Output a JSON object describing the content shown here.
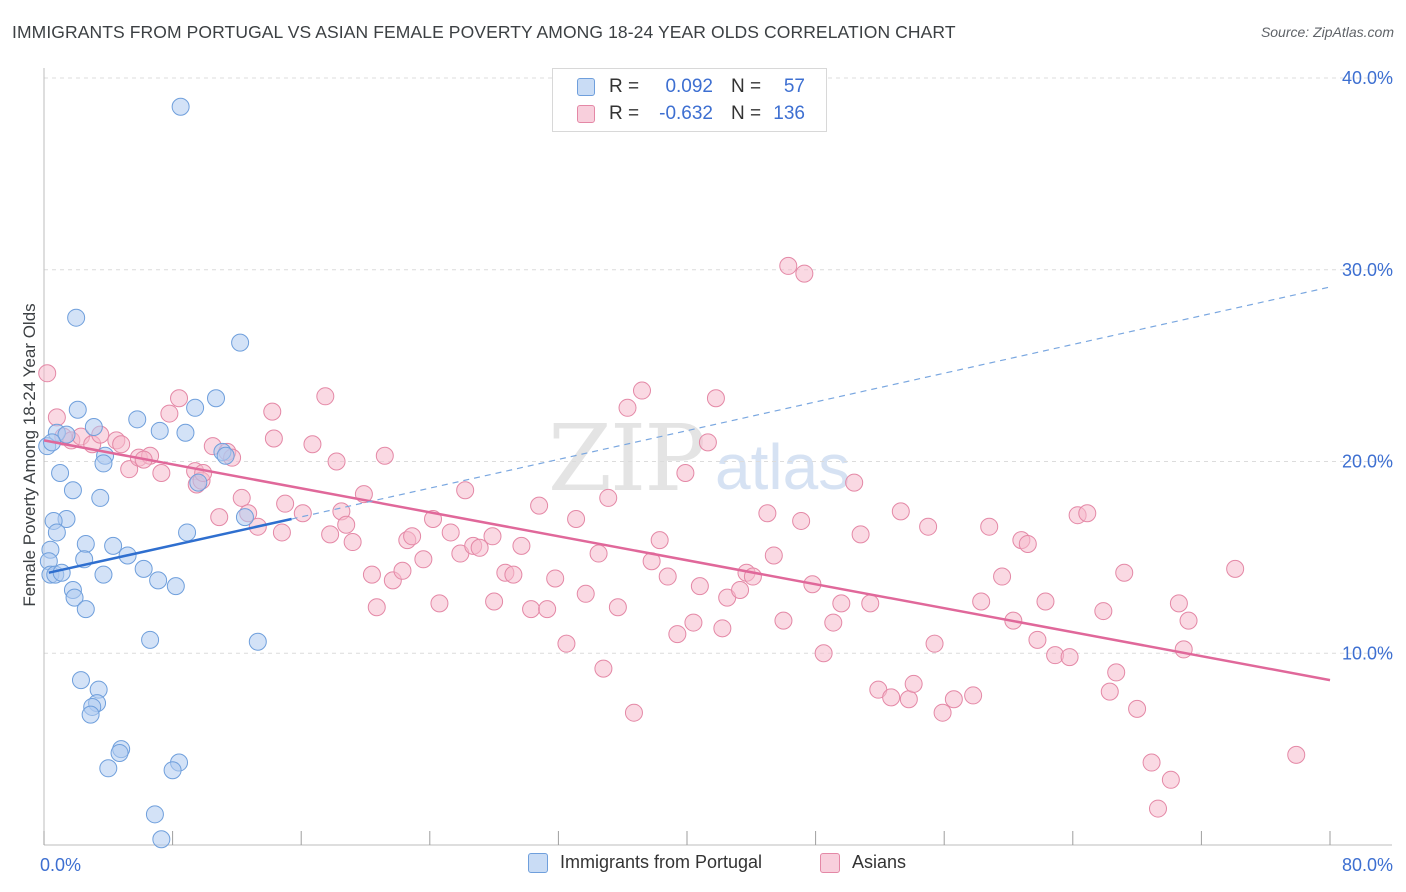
{
  "header": {
    "title": "IMMIGRANTS FROM PORTUGAL VS ASIAN FEMALE POVERTY AMONG 18-24 YEAR OLDS CORRELATION CHART",
    "source": "Source: ZipAtlas.com"
  },
  "watermark": {
    "zip": "ZIP",
    "atlas": "atlas"
  },
  "legend": {
    "rows": [
      {
        "series": "Immigrants from Portugal",
        "r_label": "R =",
        "r_value": "0.092",
        "n_label": "N =",
        "n_value": "57"
      },
      {
        "series": "Asians",
        "r_label": "R =",
        "r_value": "-0.632",
        "n_label": "N =",
        "n_value": "136"
      }
    ]
  },
  "colors": {
    "blue_fill": "#aecbf0",
    "blue_stroke": "#6f9fdc",
    "blue_line": "#2f6fcf",
    "pink_fill": "#f5b9cc",
    "pink_stroke": "#e488a6",
    "pink_line": "#e0689a",
    "axis_label": "#3d6fd1",
    "grid": "#dcdcdc"
  },
  "chart_data": {
    "type": "scatter",
    "title": "IMMIGRANTS FROM PORTUGAL VS ASIAN FEMALE POVERTY AMONG 18-24 YEAR OLDS CORRELATION CHART",
    "xlabel": "",
    "ylabel": "Female Poverty Among 18-24 Year Olds",
    "xlim": [
      0,
      80
    ],
    "ylim": [
      0,
      40
    ],
    "x_tick_labels": [
      "0.0%",
      "80.0%"
    ],
    "y_ticks": [
      10,
      20,
      30,
      40
    ],
    "y_tick_labels": [
      "10.0%",
      "20.0%",
      "30.0%",
      "40.0%"
    ],
    "grid": true,
    "legend_placement": "top-center",
    "series": [
      {
        "name": "Immigrants from Portugal",
        "r": 0.092,
        "n": 57,
        "trend_solid": [
          [
            0.3,
            14.2
          ],
          [
            15.4,
            17.0
          ]
        ],
        "trend_dashed": [
          [
            15.4,
            17.0
          ],
          [
            80.0,
            29.1
          ]
        ],
        "points": [
          [
            8.5,
            38.5
          ],
          [
            2.0,
            27.5
          ],
          [
            12.2,
            26.2
          ],
          [
            0.8,
            21.5
          ],
          [
            1.4,
            21.4
          ],
          [
            2.1,
            22.7
          ],
          [
            3.1,
            21.8
          ],
          [
            5.8,
            22.2
          ],
          [
            7.2,
            21.6
          ],
          [
            8.8,
            21.5
          ],
          [
            10.7,
            23.3
          ],
          [
            9.4,
            22.8
          ],
          [
            11.1,
            20.5
          ],
          [
            11.3,
            20.3
          ],
          [
            3.8,
            20.3
          ],
          [
            3.7,
            19.9
          ],
          [
            1.0,
            19.4
          ],
          [
            1.8,
            18.5
          ],
          [
            3.5,
            18.1
          ],
          [
            9.6,
            18.9
          ],
          [
            1.4,
            17.0
          ],
          [
            0.6,
            16.9
          ],
          [
            12.5,
            17.1
          ],
          [
            0.8,
            16.3
          ],
          [
            8.9,
            16.3
          ],
          [
            0.4,
            15.4
          ],
          [
            2.6,
            15.7
          ],
          [
            4.3,
            15.6
          ],
          [
            0.3,
            14.8
          ],
          [
            2.5,
            14.9
          ],
          [
            5.2,
            15.1
          ],
          [
            6.2,
            14.4
          ],
          [
            0.4,
            14.1
          ],
          [
            0.7,
            14.1
          ],
          [
            1.1,
            14.2
          ],
          [
            3.7,
            14.1
          ],
          [
            7.1,
            13.8
          ],
          [
            8.2,
            13.5
          ],
          [
            1.8,
            13.3
          ],
          [
            1.9,
            12.9
          ],
          [
            2.6,
            12.3
          ],
          [
            6.6,
            10.7
          ],
          [
            13.3,
            10.6
          ],
          [
            2.3,
            8.6
          ],
          [
            3.4,
            8.1
          ],
          [
            3.3,
            7.4
          ],
          [
            3.0,
            7.2
          ],
          [
            2.9,
            6.8
          ],
          [
            4.8,
            5.0
          ],
          [
            4.7,
            4.8
          ],
          [
            4.0,
            4.0
          ],
          [
            8.4,
            4.3
          ],
          [
            8.0,
            3.9
          ],
          [
            6.9,
            1.6
          ],
          [
            7.3,
            0.3
          ],
          [
            0.2,
            20.8
          ],
          [
            0.5,
            21.0
          ]
        ]
      },
      {
        "name": "Asians",
        "r": -0.632,
        "n": 136,
        "trend": [
          [
            0.0,
            21.1
          ],
          [
            80.0,
            8.6
          ]
        ],
        "points": [
          [
            0.2,
            24.6
          ],
          [
            0.8,
            22.3
          ],
          [
            1.2,
            21.3
          ],
          [
            1.7,
            21.1
          ],
          [
            2.3,
            21.3
          ],
          [
            3.0,
            20.9
          ],
          [
            3.5,
            21.4
          ],
          [
            4.5,
            21.1
          ],
          [
            4.8,
            20.9
          ],
          [
            5.3,
            19.6
          ],
          [
            5.9,
            20.2
          ],
          [
            6.6,
            20.3
          ],
          [
            7.3,
            19.4
          ],
          [
            7.8,
            22.5
          ],
          [
            8.4,
            23.3
          ],
          [
            9.4,
            19.5
          ],
          [
            9.5,
            18.8
          ],
          [
            9.8,
            19.0
          ],
          [
            9.9,
            19.4
          ],
          [
            10.5,
            20.8
          ],
          [
            11.4,
            20.5
          ],
          [
            11.7,
            20.2
          ],
          [
            10.9,
            17.1
          ],
          [
            12.3,
            18.1
          ],
          [
            12.7,
            17.3
          ],
          [
            13.3,
            16.6
          ],
          [
            14.8,
            16.3
          ],
          [
            14.2,
            22.6
          ],
          [
            15.0,
            17.8
          ],
          [
            16.1,
            17.3
          ],
          [
            16.7,
            20.9
          ],
          [
            17.5,
            23.4
          ],
          [
            17.8,
            16.2
          ],
          [
            18.5,
            17.4
          ],
          [
            18.8,
            16.7
          ],
          [
            18.2,
            20.0
          ],
          [
            19.2,
            15.8
          ],
          [
            19.9,
            18.3
          ],
          [
            20.4,
            14.1
          ],
          [
            20.7,
            12.4
          ],
          [
            21.2,
            20.3
          ],
          [
            21.7,
            13.8
          ],
          [
            22.3,
            14.3
          ],
          [
            22.6,
            15.9
          ],
          [
            22.9,
            16.1
          ],
          [
            23.6,
            14.9
          ],
          [
            24.2,
            17.0
          ],
          [
            24.6,
            12.6
          ],
          [
            25.3,
            16.3
          ],
          [
            25.9,
            15.2
          ],
          [
            26.2,
            18.5
          ],
          [
            26.7,
            15.6
          ],
          [
            27.1,
            15.5
          ],
          [
            27.9,
            16.1
          ],
          [
            28.0,
            12.7
          ],
          [
            28.7,
            14.2
          ],
          [
            29.2,
            14.1
          ],
          [
            29.7,
            15.6
          ],
          [
            30.3,
            12.3
          ],
          [
            30.8,
            17.7
          ],
          [
            31.3,
            12.3
          ],
          [
            31.8,
            13.9
          ],
          [
            32.5,
            10.5
          ],
          [
            33.1,
            17.0
          ],
          [
            33.7,
            13.1
          ],
          [
            34.5,
            15.2
          ],
          [
            34.8,
            9.2
          ],
          [
            35.1,
            18.1
          ],
          [
            35.7,
            12.4
          ],
          [
            36.3,
            22.8
          ],
          [
            36.7,
            6.9
          ],
          [
            37.2,
            23.7
          ],
          [
            37.8,
            14.8
          ],
          [
            38.3,
            15.9
          ],
          [
            38.8,
            14.0
          ],
          [
            39.4,
            11.0
          ],
          [
            39.9,
            19.4
          ],
          [
            40.4,
            11.6
          ],
          [
            40.8,
            13.5
          ],
          [
            41.3,
            21.0
          ],
          [
            41.8,
            23.3
          ],
          [
            42.2,
            11.3
          ],
          [
            42.5,
            12.9
          ],
          [
            43.3,
            13.3
          ],
          [
            43.7,
            14.2
          ],
          [
            44.1,
            14.0
          ],
          [
            45.0,
            17.3
          ],
          [
            45.4,
            15.1
          ],
          [
            46.0,
            11.7
          ],
          [
            47.1,
            16.9
          ],
          [
            47.8,
            13.6
          ],
          [
            48.5,
            10.0
          ],
          [
            49.1,
            11.6
          ],
          [
            49.6,
            12.6
          ],
          [
            50.4,
            18.9
          ],
          [
            50.8,
            16.2
          ],
          [
            51.4,
            12.6
          ],
          [
            51.9,
            8.1
          ],
          [
            52.7,
            7.7
          ],
          [
            53.3,
            17.4
          ],
          [
            53.8,
            7.6
          ],
          [
            54.1,
            8.4
          ],
          [
            55.0,
            16.6
          ],
          [
            55.4,
            10.5
          ],
          [
            55.9,
            6.9
          ],
          [
            56.6,
            7.6
          ],
          [
            57.8,
            7.8
          ],
          [
            58.3,
            12.7
          ],
          [
            58.8,
            16.6
          ],
          [
            59.6,
            14.0
          ],
          [
            60.3,
            11.7
          ],
          [
            60.8,
            15.9
          ],
          [
            61.2,
            15.7
          ],
          [
            61.8,
            10.7
          ],
          [
            62.3,
            12.7
          ],
          [
            62.9,
            9.9
          ],
          [
            63.8,
            9.8
          ],
          [
            64.3,
            17.2
          ],
          [
            64.9,
            17.3
          ],
          [
            65.9,
            12.2
          ],
          [
            66.3,
            8.0
          ],
          [
            66.7,
            9.0
          ],
          [
            67.2,
            14.2
          ],
          [
            68.0,
            7.1
          ],
          [
            68.9,
            4.3
          ],
          [
            69.3,
            1.9
          ],
          [
            70.1,
            3.4
          ],
          [
            70.6,
            12.6
          ],
          [
            70.9,
            10.2
          ],
          [
            71.2,
            11.7
          ],
          [
            74.1,
            14.4
          ],
          [
            77.9,
            4.7
          ],
          [
            46.3,
            30.2
          ],
          [
            47.3,
            29.8
          ],
          [
            14.3,
            21.2
          ],
          [
            6.2,
            20.1
          ]
        ]
      }
    ]
  },
  "bottom_legend": {
    "series_1": "Immigrants from Portugal",
    "series_2": "Asians"
  }
}
